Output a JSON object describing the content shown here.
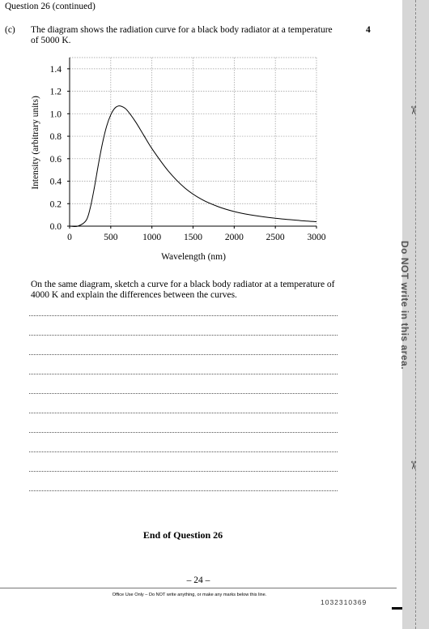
{
  "header": {
    "question": "Question 26 (continued)"
  },
  "part": {
    "label": "(c)",
    "intro": "The diagram shows the radiation curve for a black body radiator at a temperature of 5000 K.",
    "marks": "4",
    "task": "On the same diagram, sketch a curve for a black body radiator at a temperature of 4000 K and explain the differences between the curves."
  },
  "chart_data": {
    "type": "line",
    "title": "",
    "xlabel": "Wavelength (nm)",
    "ylabel": "Intensity (arbitrary units)",
    "xlim": [
      0,
      3000
    ],
    "ylim": [
      0,
      1.5
    ],
    "x_ticks": [
      0,
      500,
      1000,
      1500,
      2000,
      2500,
      3000
    ],
    "x_tick_labels": [
      "0",
      "500",
      "1000",
      "1500",
      "2000",
      "2500",
      "3000"
    ],
    "y_ticks": [
      0,
      0.2,
      0.4,
      0.6,
      0.8,
      1.0,
      1.2,
      1.4
    ],
    "y_tick_labels": [
      "0.0",
      "0.2",
      "0.4",
      "0.6",
      "0.8",
      "1.0",
      "1.2",
      "1.4"
    ],
    "grid": true,
    "series": [
      {
        "x": [
          0,
          100,
          200,
          250,
          300,
          350,
          400,
          450,
          500,
          550,
          600,
          650,
          700,
          800,
          900,
          1000,
          1200,
          1400,
          1600,
          1800,
          2000,
          2200,
          2500,
          2800,
          3000
        ],
        "y": [
          0.0,
          0.0,
          0.05,
          0.16,
          0.34,
          0.55,
          0.74,
          0.89,
          0.99,
          1.05,
          1.07,
          1.06,
          1.03,
          0.93,
          0.81,
          0.69,
          0.49,
          0.34,
          0.24,
          0.175,
          0.13,
          0.1,
          0.07,
          0.05,
          0.04
        ]
      }
    ]
  },
  "answer_lines": 10,
  "footer": {
    "end": "End of Question 26",
    "page": "– 24 –",
    "office": "Office Use Only – Do NOT write anything, or make any marks below this line.",
    "barcode": "1032310369"
  },
  "margin": {
    "warning": "Do NOT write in this area."
  }
}
